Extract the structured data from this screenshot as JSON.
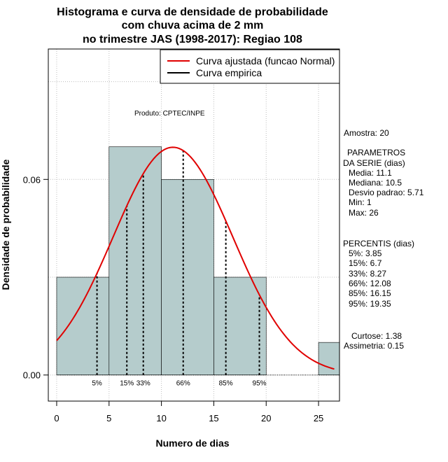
{
  "chart_data": {
    "type": "histogram",
    "title": [
      "Histograma e curva de densidade de probabilidade",
      "com chuva acima de 2 mm",
      "no trimestre JAS (1998-2017): Regiao 108"
    ],
    "xlabel": "Numero de dias",
    "ylabel": "Densidade de probabilidade",
    "xlim": [
      -0.8,
      27
    ],
    "ylim": [
      -0.008,
      0.1
    ],
    "x_ticks": [
      0,
      5,
      10,
      15,
      20,
      25
    ],
    "y_ticks": [
      0.0,
      0.06
    ],
    "y_tick_labels": [
      "0.00",
      "0.06"
    ],
    "bins": [
      {
        "x0": 0,
        "x1": 5,
        "density": 0.03
      },
      {
        "x0": 5,
        "x1": 10,
        "density": 0.07
      },
      {
        "x0": 10,
        "x1": 15,
        "density": 0.06
      },
      {
        "x0": 15,
        "x1": 20,
        "density": 0.03
      },
      {
        "x0": 20,
        "x1": 25,
        "density": 0.0
      },
      {
        "x0": 25,
        "x1": 27,
        "density": 0.01
      }
    ],
    "fitted_curve": {
      "distribution": "normal",
      "mean": 11.1,
      "sd": 5.71,
      "x_from": 0,
      "x_to": 26.5,
      "color": "#e00000"
    },
    "percentile_markers": [
      {
        "label": "5%",
        "x": 3.85
      },
      {
        "label": "15%",
        "x": 6.7
      },
      {
        "label": "33%",
        "x": 8.27
      },
      {
        "label": "66%",
        "x": 12.08
      },
      {
        "label": "85%",
        "x": 16.15
      },
      {
        "label": "95%",
        "x": 19.35
      }
    ],
    "legend": {
      "placement": "top-right",
      "entries": [
        {
          "label": "Curva ajustada (funcao Normal)",
          "color": "#e00000"
        },
        {
          "label": "Curva empirica",
          "color": "#000000"
        }
      ]
    },
    "annotation": "Produto: CPTEC/INPE",
    "grid": true,
    "bar_color": "#b5cccc"
  },
  "stats_panel": {
    "amostra": "Amostra: 20",
    "param_title1": "PARAMETROS",
    "param_title2": "DA SERIE (dias)",
    "media": "Media: 11.1",
    "mediana": "Mediana: 10.5",
    "desvio": "Desvio padrao: 5.71",
    "min": "Min: 1",
    "max": "Max: 26",
    "perc_title": "PERCENTIS (dias)",
    "p5": "5%: 3.85",
    "p15": "15%: 6.7",
    "p33": "33%: 8.27",
    "p66": "66%: 12.08",
    "p85": "85%: 16.15",
    "p95": "95%: 19.35",
    "curtose": "Curtose: 1.38",
    "assimetria": "Assimetria: 0.15"
  }
}
